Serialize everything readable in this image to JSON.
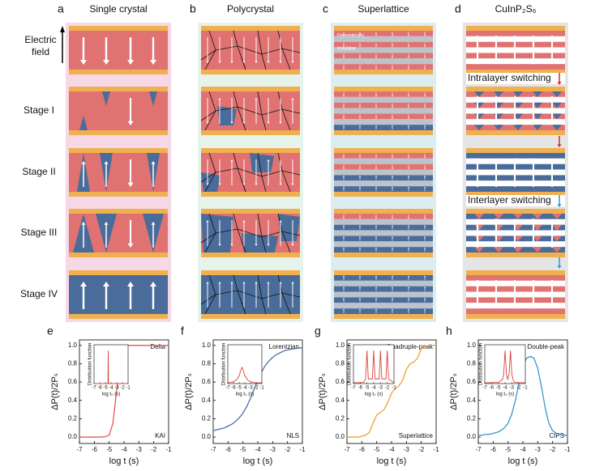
{
  "diagram": {
    "panels": [
      {
        "letter": "a",
        "title": "Single crystal"
      },
      {
        "letter": "b",
        "title": "Polycrystal"
      },
      {
        "letter": "c",
        "title": "Superlattice"
      },
      {
        "letter": "d",
        "title": "CuInP₂S₆"
      }
    ],
    "electric_field": [
      "Electric",
      "field"
    ],
    "rows": [
      "Stage I",
      "Stage II",
      "Stage III",
      "Stage IV"
    ],
    "labels": {
      "ferroelectric": "Ferroelectric",
      "insulator": "Insulator",
      "intralayer": "Intralayer switching",
      "interlayer": "Interlayer switching"
    }
  },
  "chart_data": [
    {
      "type": "line",
      "letter": "e",
      "annotation_top": "Delta",
      "annotation_bottom": "KAI",
      "xlabel": "log t (s)",
      "ylabel": "ΔP(t)/2Pₛ",
      "color": "#e05a50",
      "x": [
        -7,
        -6.75,
        -6.5,
        -6.25,
        -6,
        -5.75,
        -5.5,
        -5.25,
        -5,
        -4.75,
        -4.5,
        -4.25,
        -4,
        -3.75,
        -3.5,
        -3.25,
        -3,
        -2.75,
        -2.5,
        -2.25,
        -2,
        -1.75,
        -1.5,
        -1.25,
        -1
      ],
      "values": [
        0,
        0,
        0,
        0,
        0,
        0,
        0,
        0.005,
        0.02,
        0.15,
        0.5,
        0.85,
        0.98,
        1,
        1,
        1,
        1,
        1,
        1,
        1,
        1,
        1,
        1,
        1,
        1
      ],
      "xlim": [
        -7,
        -1
      ],
      "xticks": [
        -7,
        -6,
        -5,
        -4,
        -3,
        -2,
        -1
      ],
      "ylim": [
        -0.07,
        1.06
      ],
      "yticks": [
        {
          "value": 0,
          "label": "0.0"
        },
        0.2,
        0.4,
        0.6,
        0.8,
        {
          "value": 1,
          "label": "1.0"
        }
      ],
      "inset": {
        "xlabel": "log t₀ (s)",
        "ylabel": "Distribution function",
        "color": "#d9453a",
        "xlim": [
          -7,
          -1
        ],
        "ylim": [
          0,
          1
        ],
        "xticks": [
          -7,
          -6,
          -5,
          -4,
          -3,
          -2,
          -1
        ],
        "x": [
          -7,
          -4.55,
          -4.5,
          -4.45,
          -1
        ],
        "values": [
          0,
          0,
          0.85,
          0,
          0
        ]
      }
    },
    {
      "type": "line",
      "letter": "f",
      "annotation_top": "Lorentzian",
      "annotation_bottom": "NLS",
      "xlabel": "log t (s)",
      "ylabel": "ΔP(t)/2Pₛ",
      "color": "#4a6fa5",
      "x": [
        -7,
        -6.75,
        -6.5,
        -6.25,
        -6,
        -5.75,
        -5.5,
        -5.25,
        -5,
        -4.75,
        -4.5,
        -4.25,
        -4,
        -3.75,
        -3.5,
        -3.25,
        -3,
        -2.75,
        -2.5,
        -2.25,
        -2,
        -1.75,
        -1.5,
        -1.25,
        -1
      ],
      "values": [
        0.07,
        0.08,
        0.09,
        0.1,
        0.12,
        0.14,
        0.17,
        0.21,
        0.26,
        0.33,
        0.42,
        0.52,
        0.62,
        0.71,
        0.78,
        0.83,
        0.87,
        0.9,
        0.92,
        0.94,
        0.95,
        0.96,
        0.965,
        0.97,
        0.975
      ],
      "xlim": [
        -7,
        -1
      ],
      "xticks": [
        -7,
        -6,
        -5,
        -4,
        -3,
        -2,
        -1
      ],
      "ylim": [
        -0.07,
        1.06
      ],
      "yticks": [
        {
          "value": 0,
          "label": "0.0"
        },
        0.2,
        0.4,
        0.6,
        0.8,
        {
          "value": 1,
          "label": "1.0"
        }
      ],
      "inset": {
        "xlabel": "log t₀ (s)",
        "ylabel": "Distribution function",
        "color": "#d9453a",
        "xlim": [
          -7,
          -1
        ],
        "ylim": [
          0,
          1
        ],
        "xticks": [
          -7,
          -6,
          -5,
          -4,
          -3,
          -2,
          -1
        ],
        "x": [
          -7,
          -6.5,
          -6,
          -5.5,
          -5,
          -4.75,
          -4.5,
          -4.25,
          -4,
          -3.5,
          -3,
          -2.5,
          -2,
          -1.5,
          -1
        ],
        "values": [
          0.02,
          0.03,
          0.05,
          0.09,
          0.2,
          0.33,
          0.42,
          0.33,
          0.2,
          0.09,
          0.05,
          0.03,
          0.02,
          0.02,
          0.02
        ]
      }
    },
    {
      "type": "line",
      "letter": "g",
      "annotation_top": "Quadruple-peak",
      "annotation_bottom": "Superlattice",
      "xlabel": "log t (s)",
      "ylabel": "ΔP(t)/2Pₛ",
      "color": "#f0a030",
      "x": [
        -7,
        -6.75,
        -6.5,
        -6.25,
        -6,
        -5.75,
        -5.5,
        -5.25,
        -5,
        -4.75,
        -4.5,
        -4.25,
        -4,
        -3.75,
        -3.5,
        -3.25,
        -3,
        -2.75,
        -2.5,
        -2.25,
        -2,
        -1.75,
        -1.5,
        -1.25,
        -1
      ],
      "values": [
        0,
        0,
        0,
        0,
        0.01,
        0.02,
        0.05,
        0.15,
        0.24,
        0.27,
        0.3,
        0.38,
        0.48,
        0.53,
        0.56,
        0.62,
        0.74,
        0.8,
        0.82,
        0.86,
        0.96,
        0.99,
        1,
        1,
        1
      ],
      "xlim": [
        -7,
        -1
      ],
      "xticks": [
        -7,
        -6,
        -5,
        -4,
        -3,
        -2,
        -1
      ],
      "ylim": [
        -0.07,
        1.06
      ],
      "yticks": [
        {
          "value": 0,
          "label": "0.0"
        },
        0.2,
        0.4,
        0.6,
        0.8,
        {
          "value": 1,
          "label": "1.0"
        }
      ],
      "inset": {
        "xlabel": "log t₀ (s)",
        "ylabel": "Distribution function",
        "color": "#d9453a",
        "xlim": [
          -7,
          -1
        ],
        "ylim": [
          0,
          1
        ],
        "xticks": [
          -7,
          -6,
          -5,
          -4,
          -3,
          -2,
          -1
        ],
        "x": [
          -7,
          -5.5,
          -5.2,
          -5,
          -4.8,
          -4.2,
          -4,
          -3.8,
          -3.2,
          -3,
          -2.8,
          -2.2,
          -2,
          -1.8,
          -1
        ],
        "values": [
          0.02,
          0.03,
          0.12,
          0.85,
          0.12,
          0.12,
          0.85,
          0.12,
          0.12,
          0.85,
          0.12,
          0.12,
          0.85,
          0.12,
          0.02
        ]
      }
    },
    {
      "type": "line",
      "letter": "h",
      "annotation_top": "Double-peak",
      "annotation_bottom": "CIPS",
      "xlabel": "log t (s)",
      "ylabel": "ΔP(t)/2Pₛ",
      "color": "#3a9ac8",
      "x": [
        -7,
        -6.75,
        -6.5,
        -6.25,
        -6,
        -5.75,
        -5.5,
        -5.25,
        -5,
        -4.75,
        -4.5,
        -4.25,
        -4,
        -3.75,
        -3.5,
        -3.25,
        -3,
        -2.75,
        -2.5,
        -2.25,
        -2,
        -1.75,
        -1.5,
        -1.25,
        -1
      ],
      "values": [
        0.02,
        0.02,
        0.03,
        0.03,
        0.04,
        0.05,
        0.07,
        0.1,
        0.15,
        0.25,
        0.4,
        0.6,
        0.78,
        0.86,
        0.88,
        0.86,
        0.75,
        0.55,
        0.32,
        0.15,
        0.07,
        0.04,
        0.03,
        0.02,
        0.02
      ],
      "xlim": [
        -7,
        -1
      ],
      "xticks": [
        -7,
        -6,
        -5,
        -4,
        -3,
        -2,
        -1
      ],
      "ylim": [
        -0.07,
        1.06
      ],
      "yticks": [
        {
          "value": 0,
          "label": "0.0"
        },
        0.2,
        0.4,
        0.6,
        0.8,
        {
          "value": 1,
          "label": "1.0"
        }
      ],
      "inset": {
        "xlabel": "log t₀ (s)",
        "ylabel": "Distribution function",
        "color": "#d9453a",
        "xlim": [
          -7,
          -1
        ],
        "ylim": [
          0,
          1
        ],
        "xticks": [
          -7,
          -6,
          -5,
          -4,
          -3,
          -2,
          -1
        ],
        "x": [
          -7,
          -5,
          -4.4,
          -4.2,
          -4,
          -3.8,
          -3.6,
          -3.4,
          -3.2,
          -3,
          -2.8,
          -2.6,
          -1
        ],
        "values": [
          0.02,
          0.03,
          0.1,
          0.25,
          0.85,
          0.25,
          0.1,
          0.25,
          0.85,
          0.25,
          0.1,
          0.03,
          0.02
        ]
      }
    }
  ]
}
